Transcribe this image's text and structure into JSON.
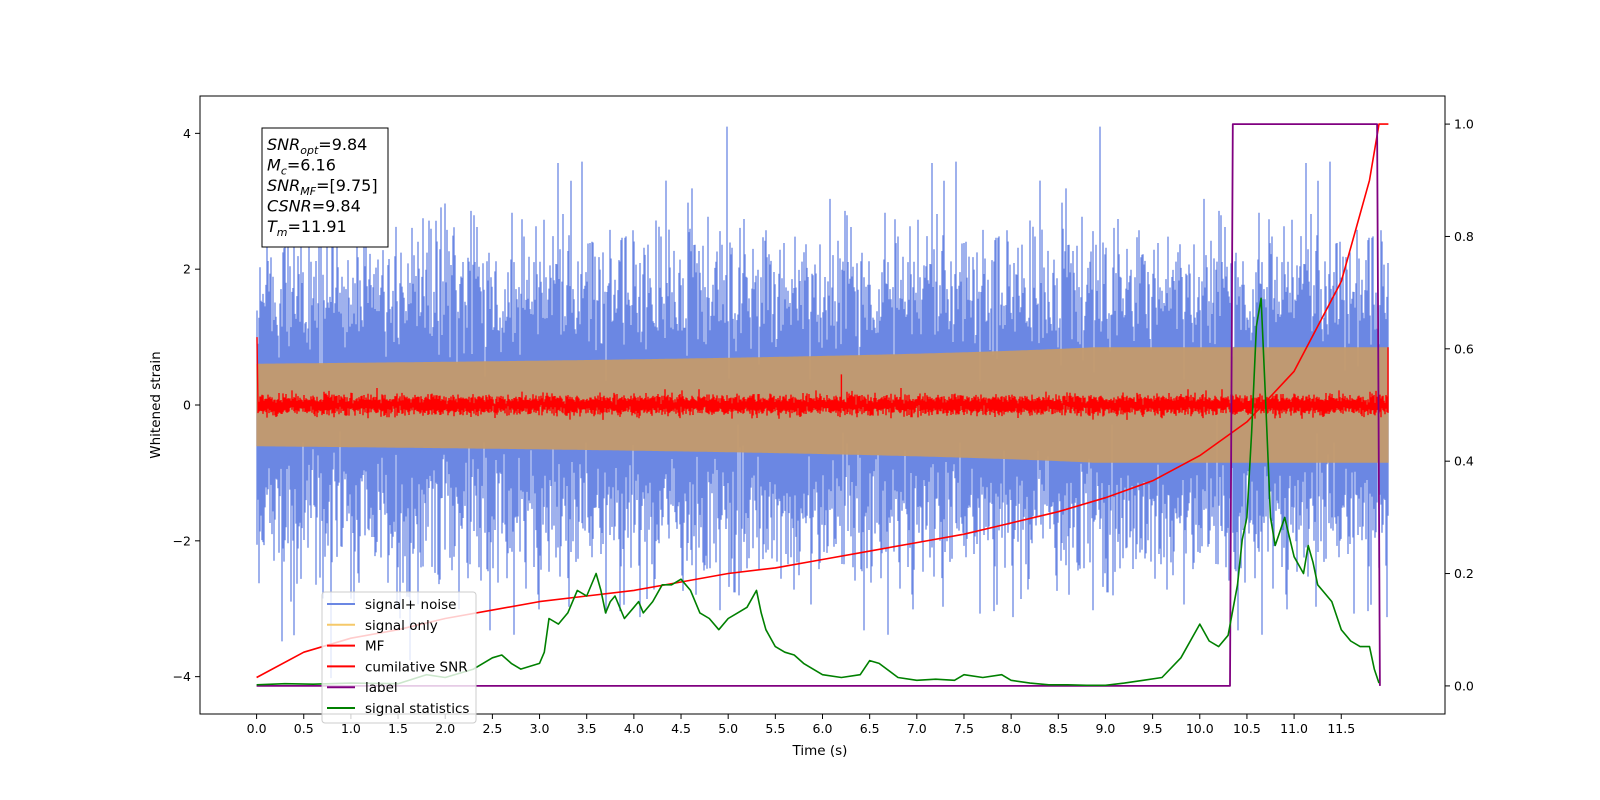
{
  "chart_data": {
    "type": "line",
    "xlabel": "Time (s)",
    "ylabel": "Whitened strain",
    "xlim": [
      -0.6,
      12.6
    ],
    "ylim": [
      -4.55,
      4.55
    ],
    "y2lim": [
      -0.05,
      1.05
    ],
    "x_ticks": [
      "0.0",
      "0.5",
      "1.0",
      "1.5",
      "2.0",
      "2.5",
      "3.0",
      "3.5",
      "4.0",
      "4.5",
      "5.0",
      "5.5",
      "6.0",
      "6.5",
      "7.0",
      "7.5",
      "8.0",
      "8.5",
      "9.0",
      "9.5",
      "10.0",
      "10.5",
      "11.0",
      "11.5"
    ],
    "y_ticks": [
      "−4",
      "−2",
      "0",
      "2",
      "4"
    ],
    "y2_ticks": [
      "0.0",
      "0.2",
      "0.4",
      "0.6",
      "0.8",
      "1.0"
    ],
    "info_box": [
      {
        "sym": "SNR",
        "sub": "opt",
        "val": "=9.84"
      },
      {
        "sym": "M",
        "sub": "c",
        "val": "=6.16"
      },
      {
        "sym": "SNR",
        "sub": "MF",
        "val": "=[9.75]"
      },
      {
        "sym": "CSNR",
        "sub": "",
        "val": "=9.84"
      },
      {
        "sym": "T",
        "sub": "m",
        "val": "=11.91"
      }
    ],
    "legend": {
      "location": "lower-left",
      "entries": [
        {
          "label": "signal+ noise",
          "color": "#6b87e3"
        },
        {
          "label": "signal only",
          "color": "#f5c96a"
        },
        {
          "label": "MF",
          "color": "#ff0000"
        },
        {
          "label": "cumilative SNR",
          "color": "#ff0000"
        },
        {
          "label": "label",
          "color": "#800080"
        },
        {
          "label": "signal statistics",
          "color": "#008000"
        }
      ]
    },
    "series": [
      {
        "name": "signal+ noise",
        "axis": "left",
        "color": "#6b87e3",
        "t_range": [
          0,
          12
        ],
        "noise_sigma": 1.0,
        "approx_envelope_max": 4.1,
        "approx_envelope_min": -4.1
      },
      {
        "name": "signal only",
        "axis": "left",
        "color": "#c49a6c",
        "t_range": [
          0,
          12
        ],
        "amplitude_at_end": 0.85,
        "chirp": true
      },
      {
        "name": "MF",
        "axis": "left",
        "color": "#ff0000",
        "t_range": [
          0,
          12
        ],
        "start_value": 1.0,
        "typical_band": 0.25,
        "spike_at": [
          6.2,
          0.45
        ]
      },
      {
        "name": "cumilative SNR",
        "axis": "right",
        "color": "#ff0000",
        "x": [
          0.0,
          0.5,
          1.0,
          1.5,
          2.0,
          2.5,
          3.0,
          3.5,
          4.0,
          4.5,
          5.0,
          5.5,
          6.0,
          6.5,
          7.0,
          7.5,
          8.0,
          8.5,
          9.0,
          9.5,
          10.0,
          10.5,
          11.0,
          11.5,
          11.8,
          11.9,
          12.0
        ],
        "values": [
          0.015,
          0.06,
          0.085,
          0.1,
          0.12,
          0.135,
          0.15,
          0.16,
          0.17,
          0.185,
          0.2,
          0.21,
          0.225,
          0.24,
          0.255,
          0.27,
          0.29,
          0.31,
          0.335,
          0.365,
          0.41,
          0.47,
          0.56,
          0.72,
          0.9,
          1.0,
          1.0
        ]
      },
      {
        "name": "label",
        "axis": "right",
        "color": "#800080",
        "x": [
          0.0,
          10.32,
          10.35,
          11.88,
          11.91,
          11.91
        ],
        "values": [
          0.0,
          0.0,
          1.0,
          1.0,
          0.0,
          0.0
        ]
      },
      {
        "name": "signal statistics",
        "axis": "right",
        "color": "#008000",
        "x": [
          0.0,
          0.3,
          0.6,
          1.0,
          1.5,
          1.8,
          2.0,
          2.3,
          2.5,
          2.6,
          2.7,
          2.8,
          3.0,
          3.05,
          3.1,
          3.2,
          3.3,
          3.4,
          3.5,
          3.6,
          3.65,
          3.7,
          3.75,
          3.8,
          3.85,
          3.9,
          4.0,
          4.05,
          4.1,
          4.2,
          4.3,
          4.4,
          4.5,
          4.6,
          4.7,
          4.8,
          4.9,
          5.0,
          5.1,
          5.2,
          5.3,
          5.35,
          5.4,
          5.5,
          5.6,
          5.7,
          5.8,
          6.0,
          6.2,
          6.4,
          6.5,
          6.6,
          6.8,
          7.0,
          7.2,
          7.4,
          7.5,
          7.7,
          7.9,
          8.0,
          8.2,
          8.4,
          8.6,
          8.8,
          9.0,
          9.2,
          9.4,
          9.6,
          9.8,
          10.0,
          10.1,
          10.2,
          10.3,
          10.4,
          10.45,
          10.5,
          10.55,
          10.6,
          10.65,
          10.7,
          10.75,
          10.8,
          10.9,
          11.0,
          11.1,
          11.15,
          11.2,
          11.25,
          11.3,
          11.4,
          11.5,
          11.6,
          11.7,
          11.8,
          11.85,
          11.9
        ],
        "values": [
          0.002,
          0.004,
          0.003,
          0.005,
          0.004,
          0.02,
          0.015,
          0.03,
          0.05,
          0.055,
          0.04,
          0.03,
          0.04,
          0.06,
          0.12,
          0.11,
          0.13,
          0.17,
          0.16,
          0.2,
          0.17,
          0.13,
          0.15,
          0.16,
          0.14,
          0.12,
          0.14,
          0.15,
          0.13,
          0.15,
          0.18,
          0.18,
          0.19,
          0.17,
          0.13,
          0.12,
          0.1,
          0.12,
          0.13,
          0.14,
          0.17,
          0.13,
          0.1,
          0.07,
          0.06,
          0.055,
          0.04,
          0.02,
          0.015,
          0.02,
          0.045,
          0.04,
          0.015,
          0.01,
          0.012,
          0.01,
          0.02,
          0.015,
          0.02,
          0.01,
          0.005,
          0.002,
          0.002,
          0.001,
          0.001,
          0.005,
          0.01,
          0.015,
          0.05,
          0.11,
          0.08,
          0.07,
          0.09,
          0.18,
          0.26,
          0.3,
          0.45,
          0.64,
          0.69,
          0.5,
          0.3,
          0.25,
          0.3,
          0.23,
          0.2,
          0.25,
          0.22,
          0.18,
          0.17,
          0.15,
          0.1,
          0.08,
          0.07,
          0.07,
          0.03,
          0.005
        ]
      }
    ]
  }
}
